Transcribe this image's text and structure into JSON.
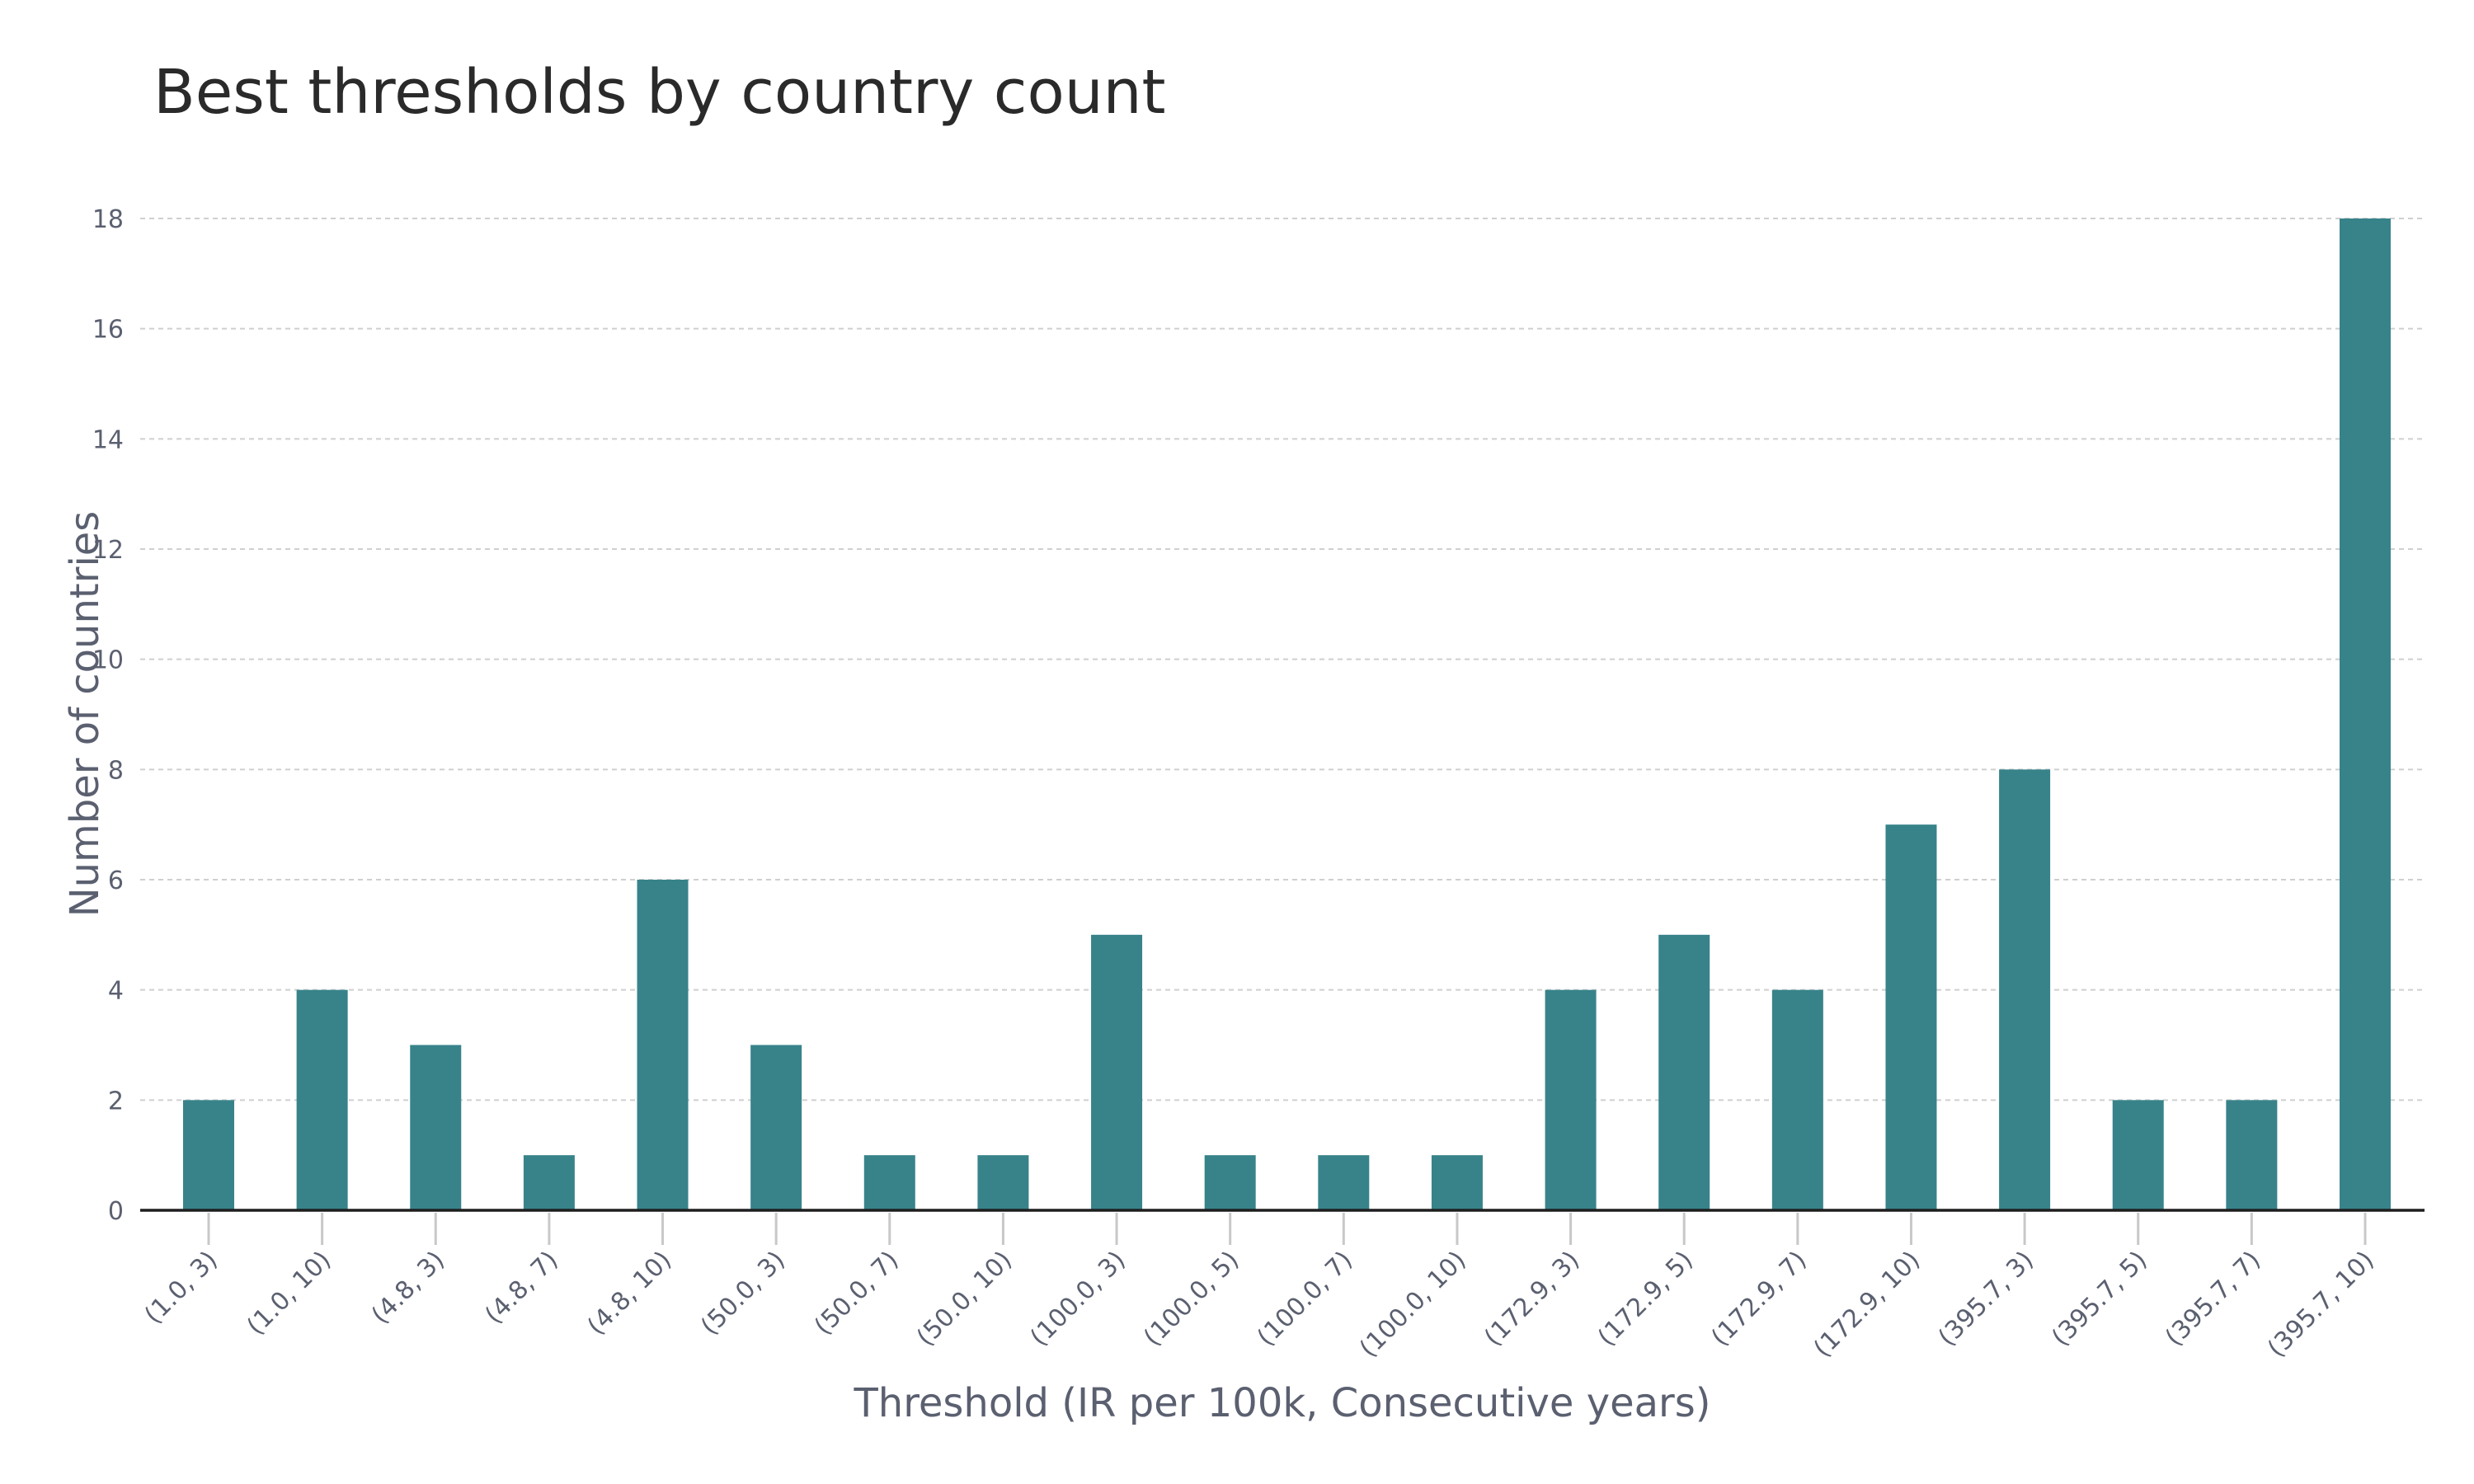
{
  "chart_data": {
    "type": "bar",
    "title": "Best thresholds by country count",
    "xlabel": "Threshold (IR per 100k, Consecutive years)",
    "ylabel": "Number of countries",
    "categories": [
      "(1.0, 3)",
      "(1.0, 10)",
      "(4.8, 3)",
      "(4.8, 7)",
      "(4.8, 10)",
      "(50.0, 3)",
      "(50.0, 7)",
      "(50.0, 10)",
      "(100.0, 3)",
      "(100.0, 5)",
      "(100.0, 7)",
      "(100.0, 10)",
      "(172.9, 3)",
      "(172.9, 5)",
      "(172.9, 7)",
      "(172.9, 10)",
      "(395.7, 3)",
      "(395.7, 5)",
      "(395.7, 7)",
      "(395.7, 10)"
    ],
    "values": [
      2,
      4,
      3,
      1,
      6,
      3,
      1,
      1,
      5,
      1,
      1,
      1,
      4,
      5,
      4,
      7,
      8,
      2,
      2,
      18
    ],
    "ylim": [
      0,
      18.5
    ],
    "yticks": [
      0,
      2,
      4,
      6,
      8,
      10,
      12,
      14,
      16,
      18
    ],
    "grid": true,
    "bar_color": "#38838a"
  }
}
